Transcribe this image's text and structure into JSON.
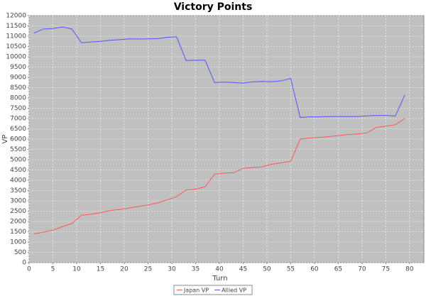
{
  "chart_data": {
    "type": "line",
    "title": "Victory Points",
    "x_label": "Turn",
    "y_label": "VP",
    "x": [
      1,
      3,
      5,
      7,
      9,
      11,
      13,
      15,
      17,
      19,
      21,
      23,
      25,
      27,
      29,
      31,
      33,
      35,
      37,
      39,
      41,
      43,
      45,
      47,
      49,
      51,
      53,
      55,
      57,
      59,
      61,
      63,
      65,
      67,
      69,
      71,
      73,
      75,
      77,
      79
    ],
    "series": [
      {
        "name": "Japan VP",
        "color": "#ff5555",
        "values": [
          1400,
          1480,
          1580,
          1750,
          1900,
          2300,
          2350,
          2430,
          2530,
          2580,
          2650,
          2730,
          2800,
          2900,
          3050,
          3200,
          3530,
          3570,
          3680,
          4300,
          4350,
          4370,
          4580,
          4620,
          4650,
          4780,
          4850,
          4920,
          6000,
          6050,
          6080,
          6120,
          6170,
          6220,
          6250,
          6300,
          6570,
          6630,
          6700,
          7000
        ]
      },
      {
        "name": "Allied VP",
        "color": "#5555ff",
        "values": [
          11150,
          11350,
          11370,
          11450,
          11350,
          10680,
          10720,
          10750,
          10800,
          10830,
          10870,
          10860,
          10870,
          10880,
          10950,
          10970,
          9820,
          9830,
          9830,
          8750,
          8770,
          8750,
          8720,
          8780,
          8800,
          8790,
          8830,
          8950,
          7050,
          7080,
          7080,
          7100,
          7100,
          7100,
          7100,
          7130,
          7150,
          7150,
          7120,
          8150
        ]
      }
    ],
    "xlim": [
      0,
      83
    ],
    "xticks": [
      0,
      5,
      10,
      15,
      20,
      25,
      30,
      35,
      40,
      45,
      50,
      55,
      60,
      65,
      70,
      75,
      80
    ],
    "ylim": [
      0,
      12000
    ],
    "yticks": [
      0,
      500,
      1000,
      1500,
      2000,
      2500,
      3000,
      3500,
      4000,
      4500,
      5000,
      5500,
      6000,
      6500,
      7000,
      7500,
      8000,
      8500,
      9000,
      9500,
      10000,
      10500,
      11000,
      11500,
      12000
    ],
    "grid": true,
    "legend": "bottom"
  }
}
